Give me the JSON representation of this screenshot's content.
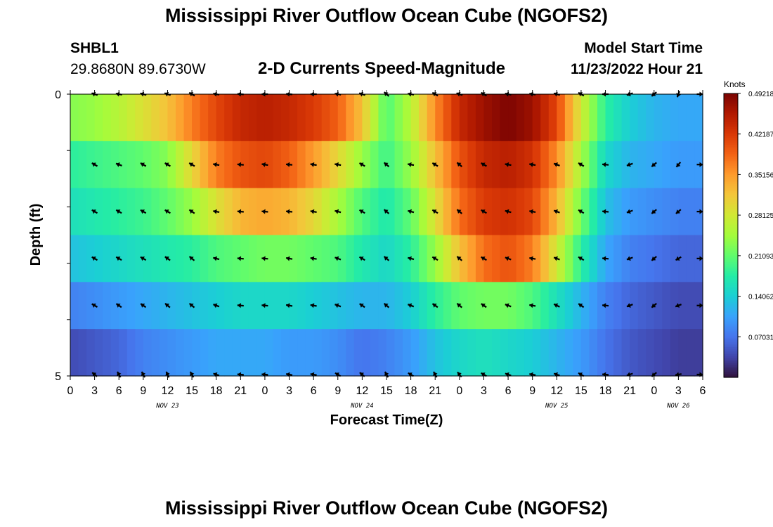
{
  "page": {
    "title": "Mississippi River Outflow Ocean Cube (NGOFS2)",
    "title_bottom": "Mississippi River Outflow Ocean Cube (NGOFS2)",
    "station": "SHBL1",
    "coords": "29.8680N  89.6730W",
    "product": "2-D Currents Speed-Magnitude",
    "model_start_label": "Model Start Time",
    "model_start_value": "11/23/2022 Hour 21"
  },
  "chart_data": {
    "type": "heatmap",
    "xlabel": "Forecast Time(Z)",
    "ylabel": "Depth (ft)",
    "x_ticks": [
      "0",
      "3",
      "6",
      "9",
      "12",
      "15",
      "18",
      "21",
      "0",
      "3",
      "6",
      "9",
      "12",
      "15",
      "18",
      "21",
      "0",
      "3",
      "6",
      "9",
      "12",
      "15",
      "18",
      "21",
      "0",
      "3",
      "6"
    ],
    "x_hours": [
      0,
      3,
      6,
      9,
      12,
      15,
      18,
      21,
      24,
      27,
      30,
      33,
      36,
      39,
      42,
      45,
      48,
      51,
      54,
      57,
      60,
      63,
      66,
      69,
      72,
      75,
      78
    ],
    "x_range": [
      0,
      78
    ],
    "date_labels": [
      {
        "label": "NOV 23",
        "hour": 12
      },
      {
        "label": "NOV 24",
        "hour": 36
      },
      {
        "label": "NOV 25",
        "hour": 60
      },
      {
        "label": "NOV 26",
        "hour": 75
      }
    ],
    "y_ticks": [
      "0",
      "5"
    ],
    "y_range": [
      0,
      5
    ],
    "depth_levels": [
      0,
      1,
      2,
      3,
      4,
      5
    ],
    "colorbar": {
      "unit": "Knots",
      "range": [
        0.0,
        0.49218
      ],
      "tick_labels": [
        "0.07031",
        "0.14062",
        "0.21093",
        "0.28125",
        "0.35156",
        "0.42187",
        "0.49218"
      ],
      "tick_values": [
        0.07031,
        0.14062,
        0.21093,
        0.28125,
        0.35156,
        0.42187,
        0.49218
      ],
      "colors": [
        "#30123b",
        "#4145ab",
        "#4675ed",
        "#39a2fc",
        "#1bcfd4",
        "#24eca6",
        "#61fc6c",
        "#a4fc3b",
        "#d1e834",
        "#f3c63a",
        "#fe9b2d",
        "#f36315",
        "#d93806",
        "#b11901",
        "#7a0402"
      ]
    },
    "time_knots": [
      0,
      3,
      6,
      9,
      12,
      15,
      18,
      21,
      24,
      27,
      30,
      33,
      36,
      39,
      42,
      45,
      48,
      51,
      54,
      57,
      60,
      63,
      66,
      69,
      72,
      75,
      78
    ],
    "speed": [
      [
        0.23,
        0.24,
        0.26,
        0.29,
        0.32,
        0.37,
        0.41,
        0.44,
        0.45,
        0.44,
        0.42,
        0.39,
        0.32,
        0.2,
        0.26,
        0.36,
        0.44,
        0.47,
        0.49,
        0.47,
        0.41,
        0.28,
        0.18,
        0.14,
        0.12,
        0.11,
        0.11
      ],
      [
        0.18,
        0.19,
        0.2,
        0.21,
        0.23,
        0.3,
        0.37,
        0.4,
        0.41,
        0.39,
        0.35,
        0.3,
        0.24,
        0.19,
        0.24,
        0.32,
        0.4,
        0.44,
        0.45,
        0.43,
        0.36,
        0.25,
        0.15,
        0.12,
        0.11,
        0.1,
        0.1
      ],
      [
        0.16,
        0.17,
        0.18,
        0.19,
        0.21,
        0.24,
        0.29,
        0.33,
        0.34,
        0.33,
        0.3,
        0.25,
        0.2,
        0.17,
        0.21,
        0.29,
        0.38,
        0.42,
        0.43,
        0.41,
        0.33,
        0.22,
        0.13,
        0.1,
        0.09,
        0.08,
        0.08
      ],
      [
        0.13,
        0.14,
        0.15,
        0.16,
        0.17,
        0.18,
        0.2,
        0.21,
        0.22,
        0.22,
        0.21,
        0.2,
        0.17,
        0.15,
        0.18,
        0.24,
        0.32,
        0.38,
        0.4,
        0.37,
        0.28,
        0.18,
        0.11,
        0.08,
        0.07,
        0.06,
        0.06
      ],
      [
        0.08,
        0.09,
        0.1,
        0.11,
        0.12,
        0.13,
        0.14,
        0.15,
        0.15,
        0.15,
        0.14,
        0.13,
        0.12,
        0.12,
        0.14,
        0.18,
        0.21,
        0.22,
        0.22,
        0.2,
        0.16,
        0.12,
        0.08,
        0.06,
        0.05,
        0.04,
        0.04
      ],
      [
        0.04,
        0.05,
        0.06,
        0.08,
        0.09,
        0.1,
        0.11,
        0.11,
        0.11,
        0.1,
        0.1,
        0.09,
        0.07,
        0.08,
        0.1,
        0.13,
        0.15,
        0.16,
        0.15,
        0.14,
        0.12,
        0.1,
        0.07,
        0.05,
        0.04,
        0.03,
        0.03
      ]
    ],
    "arrow_hours": [
      3,
      6,
      9,
      12,
      15,
      18,
      21,
      24,
      27,
      30,
      33,
      36,
      39,
      42,
      45,
      48,
      51,
      54,
      57,
      60,
      63,
      66,
      69,
      72,
      75,
      78
    ],
    "arrow_angles_deg": [
      [
        160,
        170,
        165,
        160,
        150,
        170,
        175,
        180,
        175,
        180,
        170,
        160,
        140,
        170,
        150,
        160,
        150,
        170,
        170,
        165,
        150,
        180,
        200,
        220,
        250,
        0
      ],
      [
        150,
        160,
        150,
        150,
        150,
        170,
        175,
        170,
        175,
        170,
        170,
        150,
        140,
        170,
        150,
        140,
        150,
        170,
        170,
        160,
        150,
        175,
        200,
        220,
        230,
        0
      ],
      [
        150,
        150,
        150,
        150,
        145,
        170,
        175,
        175,
        175,
        170,
        165,
        150,
        140,
        165,
        150,
        140,
        150,
        165,
        170,
        160,
        150,
        175,
        200,
        220,
        220,
        0
      ],
      [
        150,
        150,
        150,
        145,
        140,
        165,
        175,
        175,
        170,
        170,
        160,
        150,
        140,
        165,
        150,
        140,
        150,
        160,
        170,
        160,
        150,
        175,
        200,
        220,
        210,
        0
      ],
      [
        150,
        145,
        145,
        140,
        140,
        160,
        175,
        175,
        170,
        170,
        160,
        145,
        140,
        160,
        145,
        140,
        145,
        160,
        170,
        155,
        145,
        175,
        200,
        220,
        200,
        0
      ],
      [
        140,
        120,
        120,
        115,
        120,
        160,
        175,
        175,
        170,
        170,
        150,
        140,
        120,
        150,
        120,
        130,
        150,
        160,
        170,
        160,
        150,
        175,
        200,
        220,
        190,
        0
      ]
    ]
  }
}
